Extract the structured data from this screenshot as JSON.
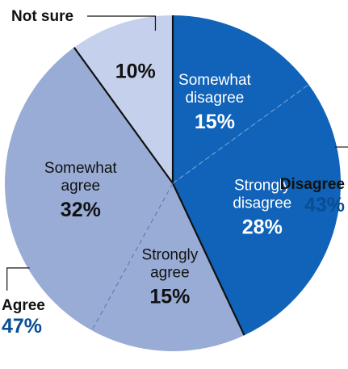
{
  "chart_data": {
    "type": "pie",
    "slices": [
      {
        "label_lines": [
          "Somewhat",
          "disagree"
        ],
        "value": 15,
        "value_label": "15%",
        "color": "#1063b8",
        "text_color": "#ffffff"
      },
      {
        "label_lines": [
          "Strongly",
          "disagree"
        ],
        "value": 28,
        "value_label": "28%",
        "color": "#1063b8",
        "text_color": "#ffffff"
      },
      {
        "label_lines": [
          "Strongly",
          "agree"
        ],
        "value": 15,
        "value_label": "15%",
        "color": "#99acd6",
        "text_color": "#111111"
      },
      {
        "label_lines": [
          "Somewhat",
          "agree"
        ],
        "value": 32,
        "value_label": "32%",
        "color": "#99acd6",
        "text_color": "#111111"
      },
      {
        "label_lines": [],
        "value": 10,
        "value_label": "10%",
        "color": "#c5d1ec",
        "text_color": "#111111"
      }
    ],
    "groups": [
      {
        "name": "Disagree",
        "total_label": "43%",
        "total_color": "#0a4d93",
        "slice_indices": [
          0,
          1
        ]
      },
      {
        "name": "Agree",
        "total_label": "47%",
        "total_color": "#0a4d93",
        "slice_indices": [
          2,
          3
        ]
      }
    ],
    "callouts": [
      {
        "name": "Not sure",
        "slice_index": 4
      }
    ],
    "start_angle_deg": 0,
    "direction": "clockwise"
  }
}
